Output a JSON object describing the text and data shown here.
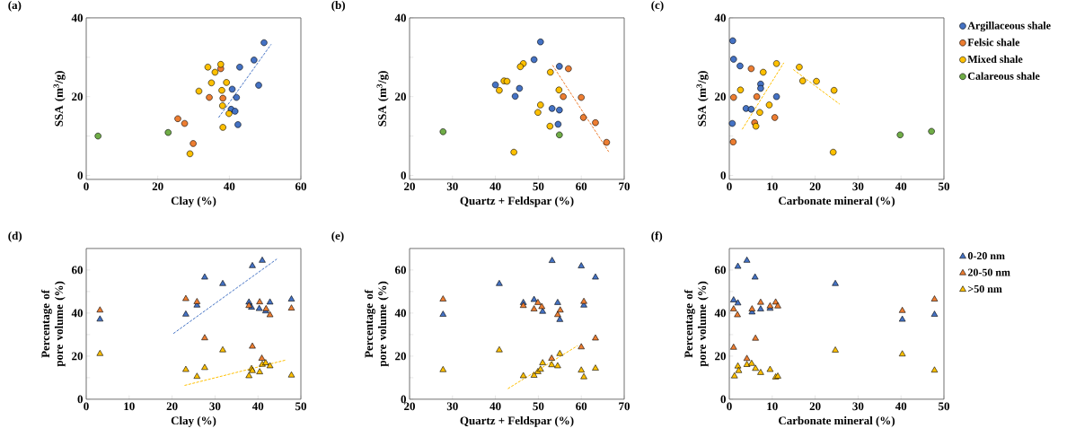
{
  "chart_data": [
    {
      "type": "scatter",
      "title": "(a)",
      "xlabel": "Clay (%)",
      "ylabel": "SSA (m$^{3}$/g)",
      "marker": "circle",
      "xlim": [
        0,
        60
      ],
      "ylim": [
        -1,
        40
      ],
      "xticks": [
        0,
        20,
        40,
        60
      ],
      "yticks": [
        0,
        {
          "value": 10,
          "label": null
        },
        20,
        {
          "value": 30,
          "label": null
        },
        40
      ],
      "series": [
        {
          "color": "#4472c4",
          "x": [
            49.7,
            46.9,
            42.9,
            48.2,
            40.8,
            42.0,
            40.5,
            41.6,
            42.4
          ],
          "values": [
            33.7,
            29.3,
            27.5,
            22.9,
            21.9,
            19.8,
            16.8,
            16.3,
            12.9
          ]
        },
        {
          "color": "#ed7d31",
          "x": [
            25.6,
            27.5,
            29.9,
            34.4,
            38.2,
            37.6
          ],
          "values": [
            14.4,
            13.2,
            8.1,
            19.8,
            19.6,
            27.1
          ]
        },
        {
          "color": "#ffc000",
          "x": [
            34.0,
            37.6,
            36.0,
            35.0,
            39.2,
            31.5,
            37.9,
            38.1,
            39.9,
            38.2,
            29.0
          ],
          "values": [
            27.5,
            28.2,
            26.2,
            23.5,
            23.6,
            21.4,
            21.6,
            17.7,
            15.7,
            12.2,
            5.5
          ]
        },
        {
          "color": "#70ad47",
          "x": [
            3.3,
            22.9
          ],
          "values": [
            10.0,
            10.9
          ]
        },
        {
          "type": "line",
          "marker": "none",
          "line_style": "dashed",
          "color": "#4472c4",
          "x": [
            37.0,
            51.7
          ],
          "values": [
            14.7,
            33.3
          ]
        }
      ]
    },
    {
      "type": "scatter",
      "title": "(b)",
      "xlabel": "Quartz + Feldspar (%)",
      "ylabel": "SSA (m$^{3}$/g)",
      "marker": "circle",
      "xlim": [
        20,
        70
      ],
      "ylim": [
        -1,
        40
      ],
      "xticks": [
        20,
        30,
        40,
        50,
        60,
        70
      ],
      "yticks": [
        0,
        {
          "value": 10,
          "label": null
        },
        20,
        {
          "value": 30,
          "label": null
        },
        40
      ],
      "series": [
        {
          "color": "#4472c4",
          "x": [
            50.5,
            49.0,
            54.9,
            40.0,
            45.6,
            44.6,
            53.2,
            54.9,
            54.6
          ],
          "values": [
            33.9,
            29.4,
            27.7,
            23.0,
            22.1,
            20.1,
            17.0,
            16.6,
            13.0
          ]
        },
        {
          "color": "#ed7d31",
          "x": [
            57.0,
            55.8,
            60.0,
            60.5,
            63.3,
            65.9
          ],
          "values": [
            27.1,
            20.0,
            19.8,
            14.7,
            13.4,
            8.4
          ]
        },
        {
          "color": "#ffc000",
          "x": [
            46.5,
            45.8,
            52.8,
            42.0,
            42.7,
            40.9,
            54.8,
            50.5,
            49.9,
            52.7,
            44.3
          ],
          "values": [
            28.4,
            27.6,
            26.2,
            24.0,
            23.9,
            21.6,
            21.7,
            17.9,
            16.0,
            12.5,
            5.9
          ]
        },
        {
          "color": "#70ad47",
          "x": [
            27.8,
            54.9
          ],
          "values": [
            11.1,
            10.3
          ]
        },
        {
          "type": "line",
          "marker": "none",
          "line_style": "dashed",
          "color": "#ed7d31",
          "x": [
            53.3,
            66.4
          ],
          "values": [
            28.0,
            6.0
          ]
        }
      ]
    },
    {
      "type": "scatter",
      "title": "(c)",
      "xlabel": "Carbonate mineral (%)",
      "ylabel": "SSA (m$^{3}$/g)",
      "marker": "circle",
      "legend": "right",
      "xlim": [
        0,
        50
      ],
      "ylim": [
        -1,
        40
      ],
      "xticks": [
        0,
        10,
        20,
        30,
        40,
        50
      ],
      "yticks": [
        0,
        {
          "value": 10,
          "label": null
        },
        20,
        {
          "value": 30,
          "label": null
        },
        40
      ],
      "series": [
        {
          "name": "Argillaceous shale",
          "color": "#4472c4",
          "x": [
            0.8,
            1.0,
            2.5,
            7.3,
            7.3,
            11.0,
            3.9,
            5.1,
            0.7
          ],
          "values": [
            34.2,
            29.5,
            27.8,
            23.2,
            22.1,
            20.0,
            17.0,
            16.8,
            13.2
          ]
        },
        {
          "name": "Felsic shale",
          "color": "#ed7d31",
          "x": [
            5.1,
            1.0,
            6.4,
            10.6,
            5.9,
            0.9
          ],
          "values": [
            27.1,
            19.8,
            20.0,
            14.7,
            13.4,
            8.5
          ]
        },
        {
          "name": "Mixed shale",
          "color": "#ffc000",
          "x": [
            11.0,
            16.3,
            7.9,
            17.1,
            20.3,
            2.6,
            24.4,
            9.3,
            7.1,
            6.2,
            24.2
          ],
          "values": [
            28.4,
            27.5,
            26.2,
            24.0,
            23.9,
            21.7,
            21.6,
            17.9,
            16.0,
            12.5,
            5.9
          ]
        },
        {
          "name": "Calareous shale",
          "color": "#70ad47",
          "x": [
            39.8,
            47.1
          ],
          "values": [
            10.3,
            11.2
          ]
        },
        {
          "type": "line",
          "marker": "none",
          "line_style": "dashed",
          "color": "#ffc000",
          "x": [
            3.0,
            12.7
          ],
          "values": [
            11.7,
            28.6
          ]
        },
        {
          "type": "line",
          "marker": "none",
          "line_style": "dashed",
          "color": "#ffc000",
          "x": [
            14.9,
            25.7
          ],
          "values": [
            26.9,
            18.1
          ]
        }
      ]
    },
    {
      "type": "scatter",
      "title": "(d)",
      "xlabel": "Clay (%)",
      "ylabel": "Percentage of pore volume (%)",
      "marker": "triangle",
      "xlim": [
        0,
        50
      ],
      "ylim": [
        0,
        70
      ],
      "xticks": [
        0,
        10,
        20,
        30,
        40,
        50
      ],
      "yticks": [
        0,
        {
          "value": 10,
          "label": null
        },
        20,
        {
          "value": 30,
          "label": null
        },
        40,
        {
          "value": 50,
          "label": null
        },
        60
      ],
      "series": [
        {
          "color": "#4472c4",
          "x": [
            3.2,
            23.2,
            25.8,
            27.6,
            31.8,
            38.7,
            41.0,
            37.9,
            38.5,
            40.3,
            41.8,
            42.8,
            47.8
          ],
          "values": [
            37.1,
            39.4,
            43.6,
            56.6,
            53.6,
            61.9,
            64.4,
            45.0,
            42.6,
            42.0,
            40.9,
            45.0,
            46.4
          ]
        },
        {
          "color": "#ed7d31",
          "x": [
            3.2,
            23.2,
            25.8,
            27.6,
            31.8,
            38.7,
            40.4,
            37.9,
            41.9,
            42.8,
            47.8,
            40.9
          ],
          "values": [
            41.3,
            46.6,
            45.2,
            28.4,
            null,
            24.5,
            45.1,
            43.4,
            41.9,
            39.1,
            42.2,
            18.9
          ]
        },
        {
          "color": "#ffc000",
          "x": [
            3.2,
            23.2,
            25.8,
            27.6,
            31.8,
            37.9,
            38.5,
            38.7,
            40.4,
            41.0,
            41.8,
            42.8,
            47.8
          ],
          "values": [
            21.1,
            13.7,
            10.5,
            14.6,
            22.8,
            10.8,
            14.1,
            13.2,
            12.6,
            16.1,
            16.8,
            15.4,
            11.1
          ]
        },
        {
          "type": "line",
          "marker": "none",
          "line_style": "dashed",
          "color": "#4472c4",
          "x": [
            20.3,
            44.4
          ],
          "values": [
            30.5,
            65.1
          ]
        },
        {
          "type": "line",
          "marker": "none",
          "line_style": "dashed",
          "color": "#ffc000",
          "x": [
            22.9,
            46.5
          ],
          "values": [
            6.4,
            18.2
          ]
        }
      ]
    },
    {
      "type": "scatter",
      "title": "(e)",
      "xlabel": "Quartz + Feldspar (%)",
      "ylabel": "Percentage of pore volume (%)",
      "marker": "triangle",
      "xlim": [
        20,
        70
      ],
      "ylim": [
        0,
        70
      ],
      "xticks": [
        20,
        30,
        40,
        50,
        60,
        70
      ],
      "yticks": [
        0,
        {
          "value": 10,
          "label": null
        },
        20,
        {
          "value": 30,
          "label": null
        },
        40,
        {
          "value": 50,
          "label": null
        },
        60
      ],
      "series": [
        {
          "color": "#4472c4",
          "x": [
            27.8,
            40.9,
            46.5,
            49.0,
            50.3,
            51.0,
            53.2,
            54.5,
            55.0,
            60.0,
            60.6,
            63.3
          ],
          "values": [
            39.3,
            53.6,
            44.8,
            46.2,
            null,
            40.7,
            64.3,
            44.8,
            36.9,
            61.8,
            43.6,
            56.6
          ]
        },
        {
          "color": "#ed7d31",
          "x": [
            27.8,
            46.5,
            49.0,
            49.9,
            50.8,
            54.5,
            55.1,
            53.1,
            60.0,
            60.6,
            63.3
          ],
          "values": [
            46.4,
            43.4,
            41.8,
            44.8,
            42.9,
            39.2,
            41.3,
            18.9,
            24.2,
            45.3,
            28.3
          ]
        },
        {
          "color": "#ffc000",
          "x": [
            27.8,
            40.9,
            46.5,
            49.0,
            49.9,
            50.5,
            51.0,
            53.1,
            54.5,
            55.0,
            60.0,
            60.6,
            63.3
          ],
          "values": [
            13.6,
            22.8,
            10.8,
            11.0,
            12.7,
            13.8,
            16.8,
            15.9,
            15.4,
            21.1,
            13.4,
            10.3,
            14.3
          ]
        },
        {
          "type": "line",
          "marker": "none",
          "line_style": "dashed",
          "color": "#ffc000",
          "x": [
            42.9,
            59.1
          ],
          "values": [
            4.9,
            24.8
          ]
        }
      ]
    },
    {
      "type": "scatter",
      "title": "(f)",
      "xlabel": "Carbonate mineral (%)",
      "ylabel": "Percentage of pore volume (%)",
      "marker": "triangle",
      "legend": "right",
      "xlim": [
        0,
        50
      ],
      "ylim": [
        0,
        70
      ],
      "xticks": [
        0,
        10,
        20,
        30,
        40,
        50
      ],
      "yticks": [
        0,
        {
          "value": 10,
          "label": null
        },
        20,
        {
          "value": 30,
          "label": null
        },
        40,
        {
          "value": 50,
          "label": null
        },
        60
      ],
      "series": [
        {
          "name": "0-20 nm",
          "color": "#4472c4",
          "x": [
            1.0,
            2.0,
            2.0,
            4.1,
            6.0,
            5.3,
            7.3,
            9.5,
            11.2,
            24.7,
            40.3,
            47.8
          ],
          "values": [
            46.0,
            44.6,
            61.6,
            64.4,
            56.6,
            40.4,
            41.8,
            42.1,
            null,
            53.6,
            37.0,
            39.3
          ]
        },
        {
          "name": "20-50 nm",
          "color": "#ed7d31",
          "x": [
            1.0,
            1.0,
            1.9,
            5.3,
            6.1,
            4.1,
            7.3,
            9.5,
            10.8,
            11.3,
            40.3,
            47.8
          ],
          "values": [
            41.8,
            24.0,
            39.1,
            41.8,
            28.2,
            18.8,
            44.9,
            43.2,
            45.0,
            43.2,
            41.1,
            46.4
          ]
        },
        {
          "name": ">50 nm",
          "color": "#ffc000",
          "x": [
            1.2,
            2.0,
            2.2,
            4.1,
            5.2,
            6.1,
            7.3,
            9.5,
            10.8,
            11.3,
            24.7,
            40.3,
            47.8
          ],
          "values": [
            10.7,
            15.3,
            13.2,
            16.0,
            16.5,
            14.2,
            12.3,
            13.7,
            10.2,
            10.6,
            22.7,
            20.9,
            13.4
          ]
        }
      ]
    }
  ]
}
